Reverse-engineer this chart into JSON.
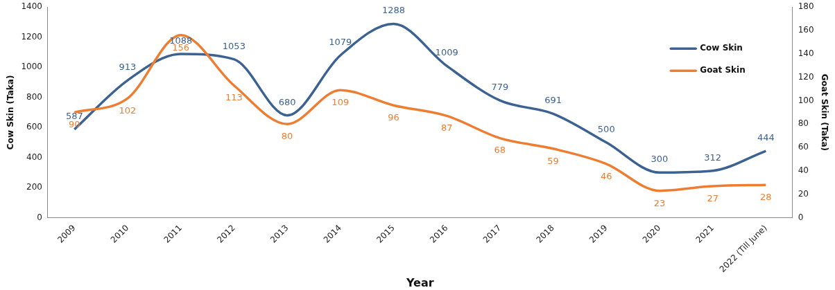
{
  "chart_data": {
    "type": "line",
    "xlabel": "Year",
    "ylabel": "Cow Skin (Taka)",
    "y2label": "Goat Skin (Taka)",
    "categories": [
      "2009",
      "2010",
      "2011",
      "2012",
      "2013",
      "2014",
      "2015",
      "2016",
      "2017",
      "2018",
      "2019",
      "2020",
      "2021",
      "2022 (Till June)"
    ],
    "series": [
      {
        "name": "Cow Skin",
        "color": "#3b6291",
        "values": [
          587,
          913,
          1088,
          1053,
          680,
          1079,
          1288,
          1009,
          779,
          691,
          500,
          300,
          312,
          444
        ]
      },
      {
        "name": "Goat Skin",
        "color": "#ed7d31",
        "axis": "y2",
        "values": [
          90,
          102,
          156,
          113,
          80,
          109,
          96,
          87,
          68,
          59,
          46,
          23,
          27,
          28
        ]
      }
    ],
    "ylim": [
      0,
      1400
    ],
    "yticks": [
      0,
      200,
      400,
      600,
      800,
      1000,
      1200,
      1400
    ],
    "y2lim": [
      0,
      180
    ],
    "y2ticks": [
      0,
      20,
      40,
      60,
      80,
      100,
      120,
      140,
      160,
      180
    ],
    "data_labels": true,
    "legend": "top right",
    "grid": false,
    "marker": "none",
    "line_style": "solid"
  }
}
